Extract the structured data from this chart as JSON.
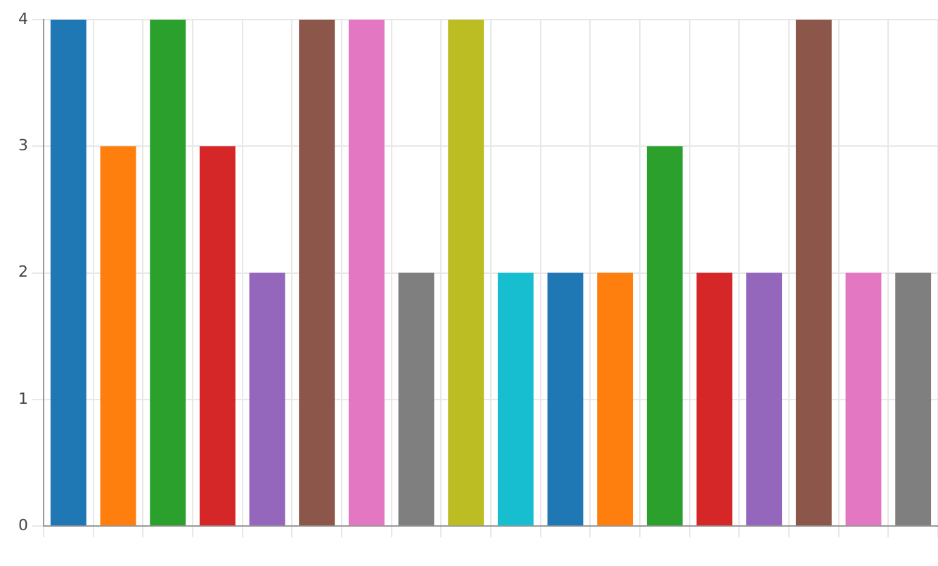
{
  "chart_data": {
    "type": "bar",
    "categories": [
      null,
      null,
      null,
      null,
      null,
      null,
      null,
      null,
      null,
      null,
      null,
      null,
      null,
      null,
      null,
      null,
      null,
      null
    ],
    "values": [
      4,
      3,
      4,
      3,
      2,
      4,
      4,
      2,
      4,
      2,
      2,
      2,
      3,
      2,
      2,
      4,
      2,
      2
    ],
    "colors": [
      "#1f77b4",
      "#ff7f0e",
      "#2ca02c",
      "#d62728",
      "#9467bd",
      "#8c564b",
      "#e377c2",
      "#7f7f7f",
      "#bcbd22",
      "#17becf",
      "#1f77b4",
      "#ff7f0e",
      "#2ca02c",
      "#d62728",
      "#9467bd",
      "#8c564b",
      "#e377c2",
      "#7f7f7f"
    ],
    "ylim": [
      0,
      4
    ],
    "yticks": [
      0,
      1,
      2,
      3,
      4
    ],
    "grid": true,
    "legend": false
  }
}
